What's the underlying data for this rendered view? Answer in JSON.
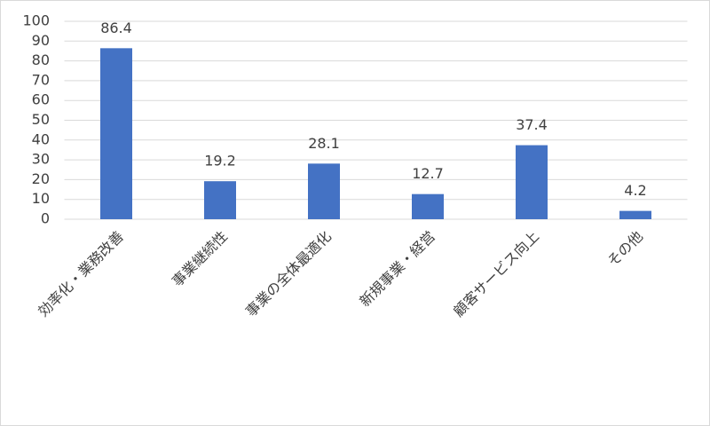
{
  "chart_data": {
    "type": "bar",
    "categories": [
      "効率化・業務改善",
      "事業継続性",
      "事業の全体最適化",
      "新規事業・経営",
      "顧客サービス向上",
      "その他"
    ],
    "values": [
      86.4,
      19.2,
      28.1,
      12.7,
      37.4,
      4.2
    ],
    "color": "#4472c4",
    "ylim": [
      0,
      100
    ],
    "yticks": [
      0,
      10,
      20,
      30,
      40,
      50,
      60,
      70,
      80,
      90,
      100
    ],
    "grid": true
  }
}
